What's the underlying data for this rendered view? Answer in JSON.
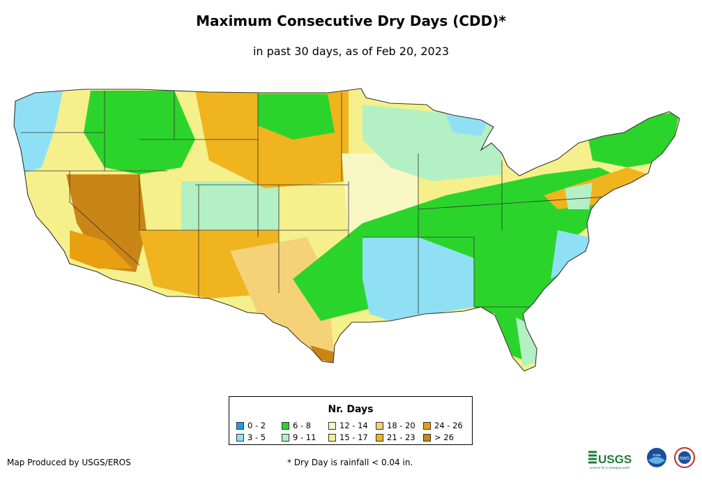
{
  "title": "Maximum Consecutive Dry Days (CDD)*",
  "subtitle": "in past 30 days, as of Feb 20, 2023",
  "legend": {
    "title": "Nr. Days",
    "items": [
      {
        "label": "0 - 2",
        "color": "#1e9be6"
      },
      {
        "label": "3 - 5",
        "color": "#8fe0f5"
      },
      {
        "label": "6 - 8",
        "color": "#2bd42b"
      },
      {
        "label": "9 - 11",
        "color": "#b3f0c4"
      },
      {
        "label": "12 - 14",
        "color": "#f7f7c4"
      },
      {
        "label": "15 - 17",
        "color": "#f5f08c"
      },
      {
        "label": "18 - 20",
        "color": "#f5d278"
      },
      {
        "label": "21 - 23",
        "color": "#f0b41e"
      },
      {
        "label": "24 - 26",
        "color": "#e8a010"
      },
      {
        "label": "> 26",
        "color": "#c98516"
      }
    ]
  },
  "footer": {
    "credit": "Map Produced by USGS/EROS",
    "note": "* Dry Day is rainfall < 0.04 in."
  },
  "logos": {
    "usgs": "USGS",
    "usgs_tagline": "science for a changing world",
    "noaa": "noaa",
    "nws": "NWS"
  }
}
